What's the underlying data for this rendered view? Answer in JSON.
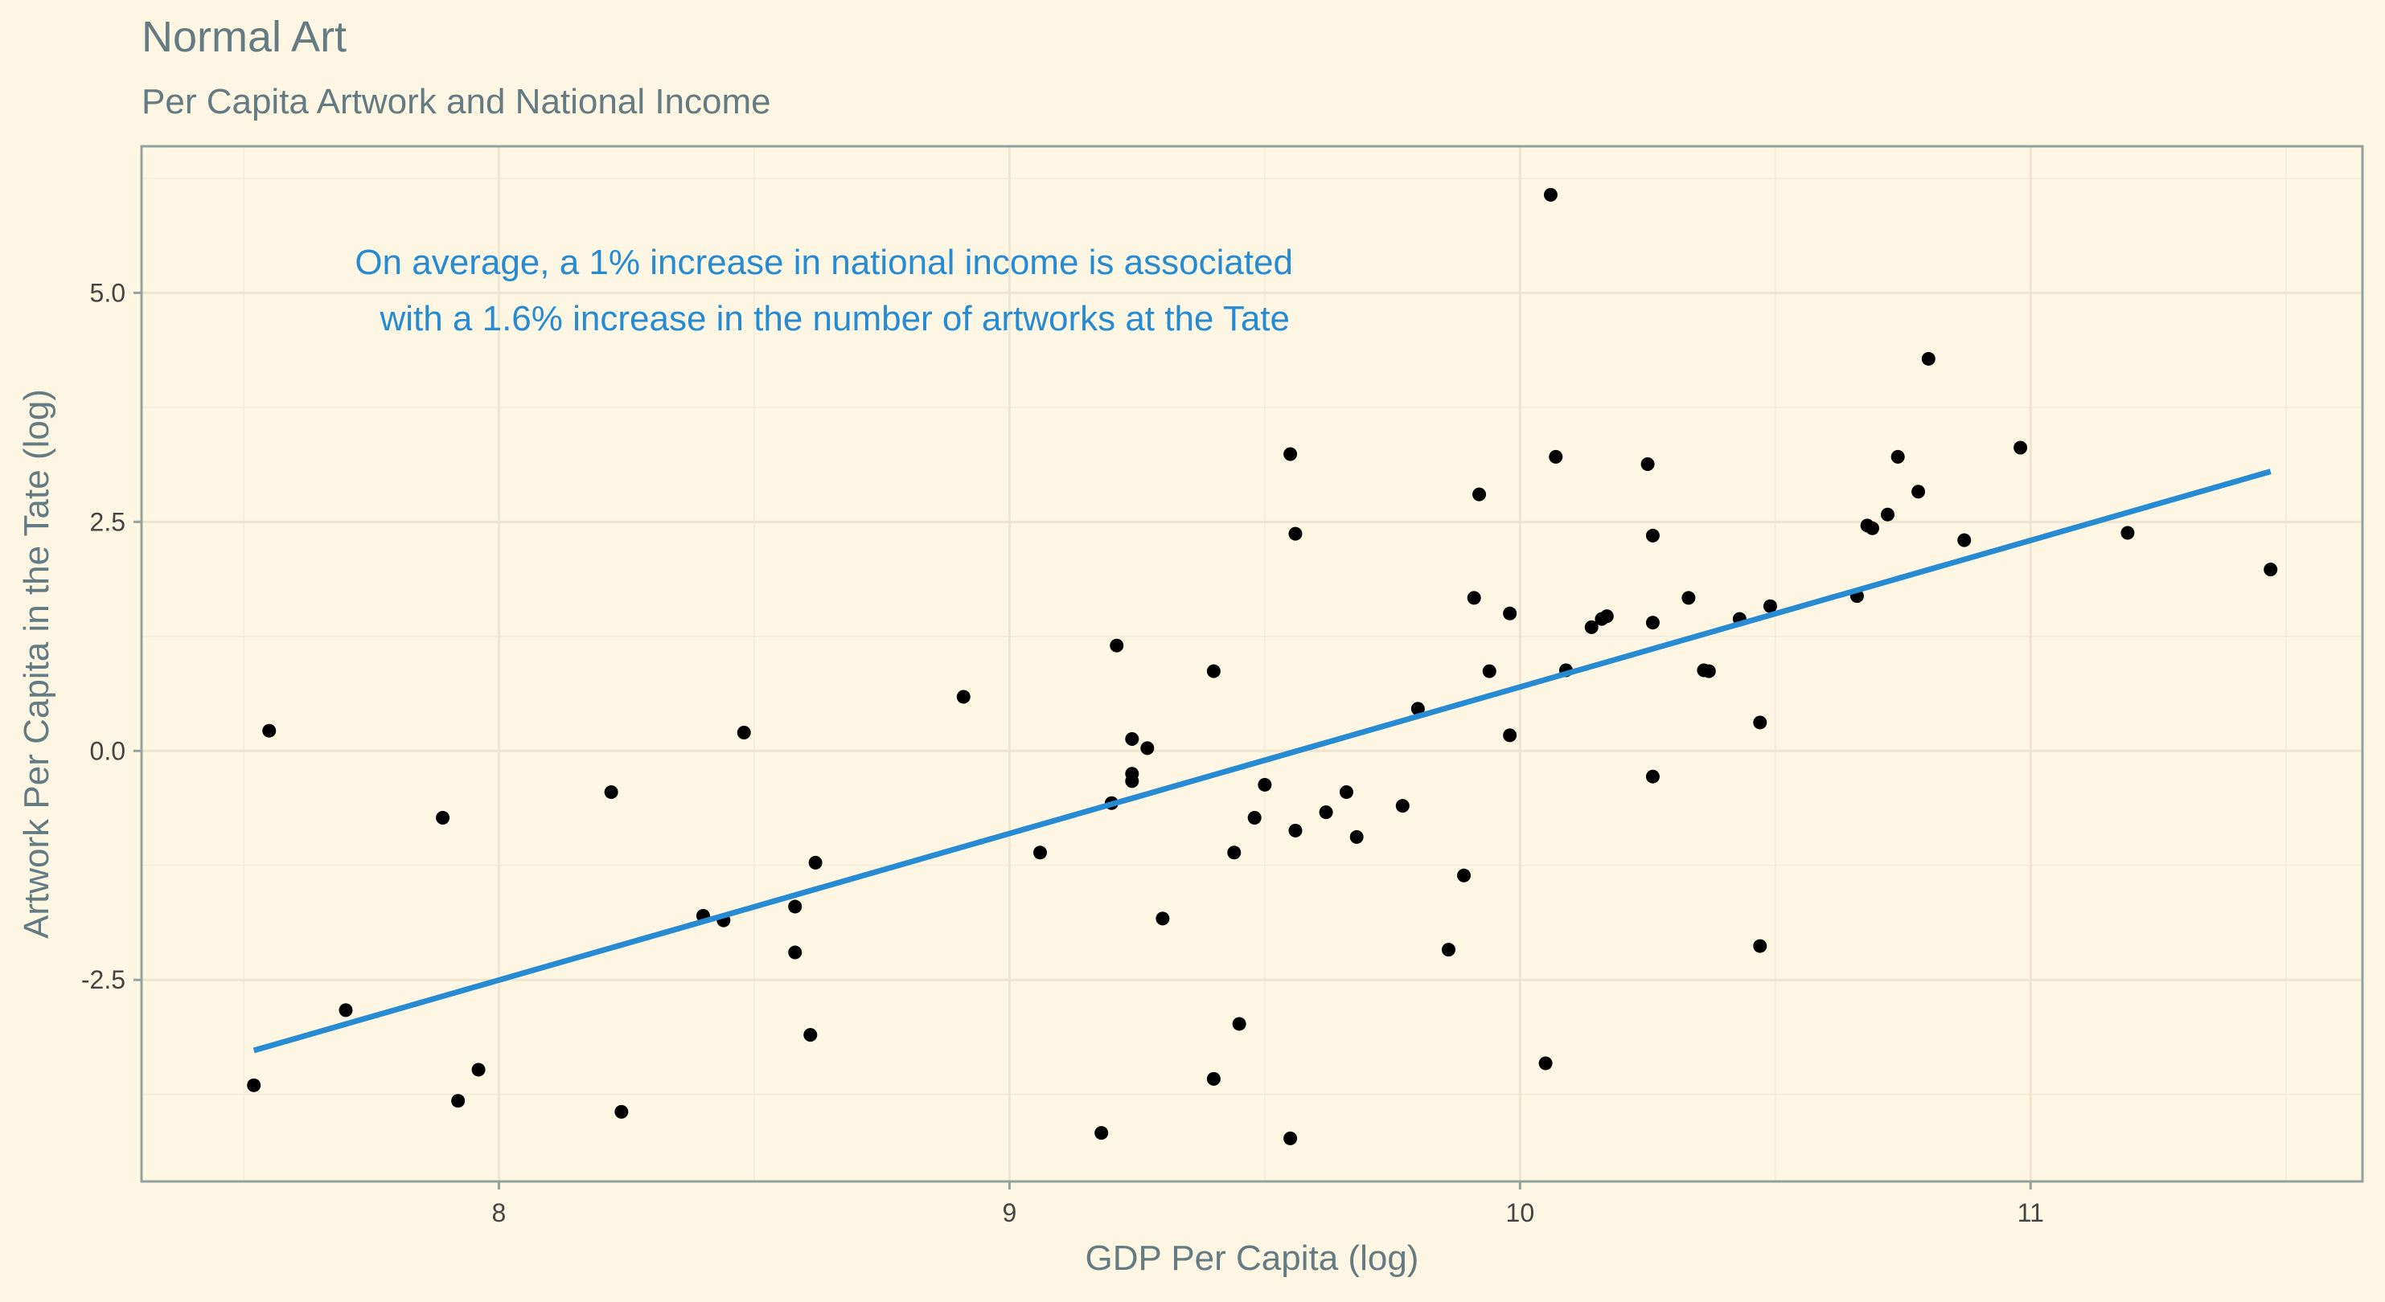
{
  "chart_data": {
    "type": "scatter",
    "title": "Normal Art",
    "subtitle": "Per Capita Artwork and National Income",
    "xlabel": "GDP Per Capita (log)",
    "ylabel": "Artwork Per Capita in the Tate (log)",
    "xlim": [
      7.3,
      11.65
    ],
    "ylim": [
      -4.7,
      6.6
    ],
    "x_ticks": [
      8,
      9,
      10,
      11
    ],
    "x_tick_labels": [
      "8",
      "9",
      "10",
      "11"
    ],
    "y_ticks": [
      -2.5,
      0,
      2.5,
      5
    ],
    "y_tick_labels": [
      "-2.5",
      "0.0",
      "2.5",
      "5.0"
    ],
    "grid": true,
    "annotation": [
      "On average, a 1% increase in national income is associated",
      "with a 1.6% increase in the number of artworks at the Tate"
    ],
    "fit_line": {
      "x": [
        7.52,
        11.47
      ],
      "y": [
        -3.27,
        3.05
      ],
      "color": "#268bd2"
    },
    "points": [
      [
        7.52,
        -3.65
      ],
      [
        7.55,
        0.22
      ],
      [
        7.7,
        -2.83
      ],
      [
        7.89,
        -0.73
      ],
      [
        7.92,
        -3.82
      ],
      [
        7.96,
        -3.48
      ],
      [
        8.22,
        -0.45
      ],
      [
        8.24,
        -3.94
      ],
      [
        8.4,
        -1.8
      ],
      [
        8.44,
        -1.85
      ],
      [
        8.48,
        0.2
      ],
      [
        8.58,
        -1.7
      ],
      [
        8.58,
        -2.2
      ],
      [
        8.61,
        -3.1
      ],
      [
        8.62,
        -1.22
      ],
      [
        8.91,
        0.59
      ],
      [
        9.06,
        -1.11
      ],
      [
        9.18,
        -4.17
      ],
      [
        9.2,
        -0.57
      ],
      [
        9.21,
        1.15
      ],
      [
        9.24,
        0.13
      ],
      [
        9.24,
        -0.25
      ],
      [
        9.24,
        -0.33
      ],
      [
        9.27,
        0.03
      ],
      [
        9.3,
        -1.83
      ],
      [
        9.4,
        0.87
      ],
      [
        9.4,
        -3.58
      ],
      [
        9.44,
        -1.11
      ],
      [
        9.45,
        -2.98
      ],
      [
        9.48,
        -0.73
      ],
      [
        9.5,
        -0.37
      ],
      [
        9.55,
        3.24
      ],
      [
        9.55,
        -4.23
      ],
      [
        9.56,
        -0.87
      ],
      [
        9.56,
        2.37
      ],
      [
        9.62,
        -0.67
      ],
      [
        9.66,
        -0.45
      ],
      [
        9.68,
        -0.94
      ],
      [
        9.77,
        -0.6
      ],
      [
        9.8,
        0.46
      ],
      [
        9.86,
        -2.17
      ],
      [
        9.89,
        -1.36
      ],
      [
        9.91,
        1.67
      ],
      [
        9.92,
        2.8
      ],
      [
        9.94,
        0.87
      ],
      [
        9.98,
        1.5
      ],
      [
        9.98,
        0.17
      ],
      [
        10.05,
        -3.41
      ],
      [
        10.06,
        6.07
      ],
      [
        10.07,
        3.21
      ],
      [
        10.09,
        0.88
      ],
      [
        10.14,
        1.35
      ],
      [
        10.16,
        1.44
      ],
      [
        10.17,
        1.47
      ],
      [
        10.25,
        3.13
      ],
      [
        10.26,
        2.35
      ],
      [
        10.26,
        1.4
      ],
      [
        10.26,
        -0.28
      ],
      [
        10.33,
        1.67
      ],
      [
        10.36,
        0.88
      ],
      [
        10.37,
        0.87
      ],
      [
        10.43,
        1.44
      ],
      [
        10.47,
        0.31
      ],
      [
        10.47,
        -2.13
      ],
      [
        10.49,
        1.58
      ],
      [
        10.66,
        1.69
      ],
      [
        10.68,
        2.46
      ],
      [
        10.69,
        2.43
      ],
      [
        10.72,
        2.58
      ],
      [
        10.74,
        3.21
      ],
      [
        10.78,
        2.83
      ],
      [
        10.8,
        4.28
      ],
      [
        10.87,
        2.3
      ],
      [
        10.98,
        3.31
      ],
      [
        11.19,
        2.38
      ],
      [
        11.47,
        1.98
      ]
    ]
  }
}
